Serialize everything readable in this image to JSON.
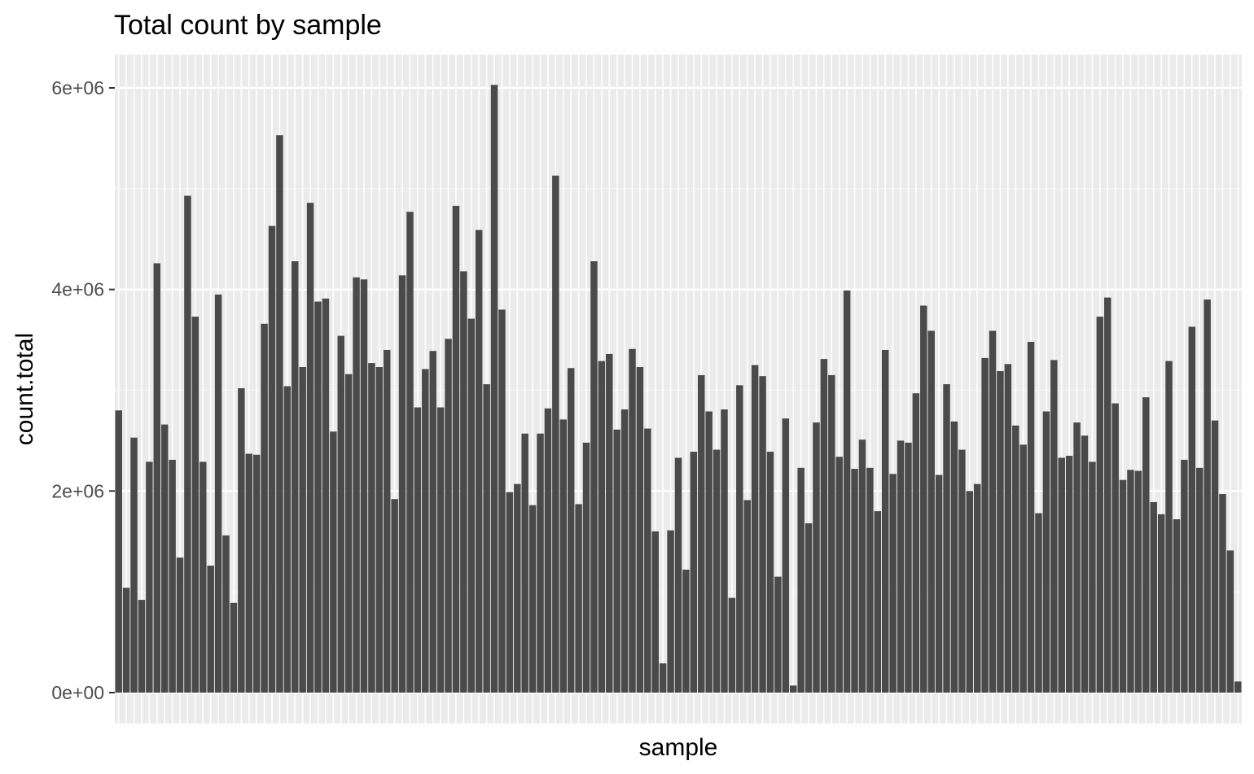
{
  "chart_data": {
    "type": "bar",
    "title": "Total count by sample",
    "xlabel": "sample",
    "ylabel": "count.total",
    "ylim": [
      0,
      6300000
    ],
    "y_ticks": [
      0,
      2000000,
      4000000,
      6000000
    ],
    "y_tick_labels": [
      "0e+00",
      "2e+06",
      "4e+06",
      "6e+06"
    ],
    "grid": true,
    "x_tick_labels_shown": false,
    "colors": {
      "bar": "#4a4a4a",
      "panel": "#ebebeb",
      "grid_major": "#ffffff",
      "grid_minor": "#f5f5f5",
      "tick": "#333333"
    },
    "values": [
      2800000,
      1040000,
      2530000,
      920000,
      2290000,
      4260000,
      2660000,
      2310000,
      1340000,
      4930000,
      3730000,
      2290000,
      1260000,
      3950000,
      1560000,
      890000,
      3020000,
      2370000,
      2360000,
      3660000,
      4630000,
      5530000,
      3040000,
      4280000,
      3230000,
      4860000,
      3880000,
      3910000,
      2590000,
      3540000,
      3160000,
      4120000,
      4100000,
      3270000,
      3230000,
      3400000,
      1920000,
      4140000,
      4770000,
      2830000,
      3210000,
      3390000,
      2830000,
      3510000,
      4830000,
      4180000,
      3710000,
      4590000,
      3060000,
      6030000,
      3800000,
      1990000,
      2070000,
      2570000,
      1860000,
      2570000,
      2820000,
      5130000,
      2710000,
      3220000,
      1870000,
      2480000,
      4280000,
      3290000,
      3360000,
      2610000,
      2810000,
      3410000,
      3230000,
      2620000,
      1600000,
      290000,
      1610000,
      2330000,
      1220000,
      2390000,
      3150000,
      2790000,
      2410000,
      2810000,
      940000,
      3050000,
      1910000,
      3250000,
      3140000,
      2390000,
      1150000,
      2720000,
      70000,
      2230000,
      1680000,
      2680000,
      3310000,
      3150000,
      2340000,
      3990000,
      2220000,
      2510000,
      2230000,
      1800000,
      3400000,
      2170000,
      2500000,
      2480000,
      2970000,
      3840000,
      3590000,
      2160000,
      3060000,
      2690000,
      2410000,
      2000000,
      2070000,
      3320000,
      3590000,
      3190000,
      3260000,
      2650000,
      2460000,
      3480000,
      1780000,
      2790000,
      3300000,
      2330000,
      2350000,
      2680000,
      2550000,
      2290000,
      3730000,
      3920000,
      2870000,
      2110000,
      2210000,
      2200000,
      2930000,
      1890000,
      1770000,
      3290000,
      1720000,
      2310000,
      3630000,
      2230000,
      3900000,
      2700000,
      1970000,
      1410000,
      110000
    ]
  }
}
